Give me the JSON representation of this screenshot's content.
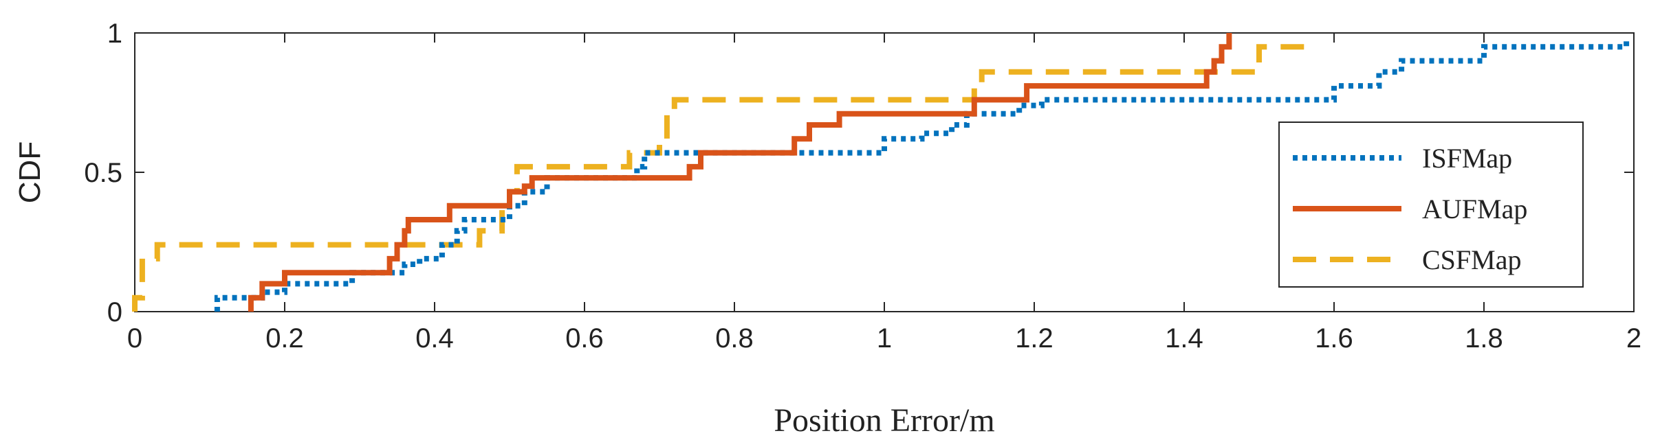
{
  "chart_data": {
    "type": "line",
    "title": "",
    "xlabel": "Position Error/m",
    "ylabel": "CDF",
    "xlim": [
      0,
      2
    ],
    "ylim": [
      0,
      1
    ],
    "x_ticks": [
      "0",
      "0.2",
      "0.4",
      "0.6",
      "0.8",
      "1",
      "1.2",
      "1.4",
      "1.6",
      "1.8",
      "2"
    ],
    "y_ticks": [
      "0",
      "0.5",
      "1"
    ],
    "grid": false,
    "legend_position": "right",
    "series": [
      {
        "name": "ISFMap",
        "color": "#0072BD",
        "style": "dotted",
        "points": [
          [
            0.11,
            0
          ],
          [
            0.11,
            0.05
          ],
          [
            0.17,
            0.05
          ],
          [
            0.17,
            0.07
          ],
          [
            0.2,
            0.07
          ],
          [
            0.2,
            0.1
          ],
          [
            0.29,
            0.1
          ],
          [
            0.29,
            0.14
          ],
          [
            0.36,
            0.14
          ],
          [
            0.36,
            0.17
          ],
          [
            0.38,
            0.17
          ],
          [
            0.38,
            0.19
          ],
          [
            0.41,
            0.19
          ],
          [
            0.41,
            0.24
          ],
          [
            0.43,
            0.24
          ],
          [
            0.43,
            0.29
          ],
          [
            0.44,
            0.29
          ],
          [
            0.44,
            0.33
          ],
          [
            0.5,
            0.33
          ],
          [
            0.5,
            0.38
          ],
          [
            0.52,
            0.38
          ],
          [
            0.52,
            0.43
          ],
          [
            0.55,
            0.43
          ],
          [
            0.55,
            0.48
          ],
          [
            0.67,
            0.48
          ],
          [
            0.67,
            0.52
          ],
          [
            0.68,
            0.52
          ],
          [
            0.68,
            0.57
          ],
          [
            0.88,
            0.57
          ],
          [
            0.88,
            0.57
          ],
          [
            1.0,
            0.57
          ],
          [
            1.0,
            0.62
          ],
          [
            1.05,
            0.62
          ],
          [
            1.05,
            0.64
          ],
          [
            1.09,
            0.64
          ],
          [
            1.09,
            0.67
          ],
          [
            1.11,
            0.67
          ],
          [
            1.11,
            0.71
          ],
          [
            1.18,
            0.71
          ],
          [
            1.18,
            0.74
          ],
          [
            1.21,
            0.74
          ],
          [
            1.21,
            0.76
          ],
          [
            1.6,
            0.76
          ],
          [
            1.6,
            0.81
          ],
          [
            1.66,
            0.81
          ],
          [
            1.66,
            0.86
          ],
          [
            1.69,
            0.86
          ],
          [
            1.69,
            0.9
          ],
          [
            1.8,
            0.9
          ],
          [
            1.8,
            0.95
          ],
          [
            1.99,
            0.95
          ],
          [
            1.99,
            0.97
          ]
        ]
      },
      {
        "name": "AUFMap",
        "color": "#D95319",
        "style": "solid",
        "points": [
          [
            0.155,
            0
          ],
          [
            0.155,
            0.05
          ],
          [
            0.17,
            0.05
          ],
          [
            0.17,
            0.1
          ],
          [
            0.2,
            0.1
          ],
          [
            0.2,
            0.14
          ],
          [
            0.34,
            0.14
          ],
          [
            0.34,
            0.19
          ],
          [
            0.35,
            0.19
          ],
          [
            0.35,
            0.24
          ],
          [
            0.36,
            0.24
          ],
          [
            0.36,
            0.29
          ],
          [
            0.365,
            0.29
          ],
          [
            0.365,
            0.33
          ],
          [
            0.42,
            0.33
          ],
          [
            0.42,
            0.38
          ],
          [
            0.5,
            0.38
          ],
          [
            0.5,
            0.43
          ],
          [
            0.52,
            0.43
          ],
          [
            0.52,
            0.45
          ],
          [
            0.53,
            0.45
          ],
          [
            0.53,
            0.48
          ],
          [
            0.74,
            0.48
          ],
          [
            0.74,
            0.52
          ],
          [
            0.755,
            0.52
          ],
          [
            0.755,
            0.57
          ],
          [
            0.88,
            0.57
          ],
          [
            0.88,
            0.62
          ],
          [
            0.9,
            0.62
          ],
          [
            0.9,
            0.67
          ],
          [
            0.94,
            0.67
          ],
          [
            0.94,
            0.71
          ],
          [
            1.12,
            0.71
          ],
          [
            1.12,
            0.76
          ],
          [
            1.19,
            0.76
          ],
          [
            1.19,
            0.81
          ],
          [
            1.43,
            0.81
          ],
          [
            1.43,
            0.86
          ],
          [
            1.44,
            0.86
          ],
          [
            1.44,
            0.9
          ],
          [
            1.45,
            0.9
          ],
          [
            1.45,
            0.95
          ],
          [
            1.46,
            0.95
          ],
          [
            1.46,
            1.0
          ]
        ]
      },
      {
        "name": "CSFMap",
        "color": "#EDB120",
        "style": "dashed",
        "points": [
          [
            0.0,
            0
          ],
          [
            0.0,
            0.05
          ],
          [
            0.01,
            0.05
          ],
          [
            0.01,
            0.19
          ],
          [
            0.03,
            0.19
          ],
          [
            0.03,
            0.24
          ],
          [
            0.46,
            0.24
          ],
          [
            0.46,
            0.29
          ],
          [
            0.49,
            0.29
          ],
          [
            0.49,
            0.38
          ],
          [
            0.5,
            0.38
          ],
          [
            0.5,
            0.43
          ],
          [
            0.51,
            0.43
          ],
          [
            0.51,
            0.52
          ],
          [
            0.66,
            0.52
          ],
          [
            0.66,
            0.57
          ],
          [
            0.7,
            0.57
          ],
          [
            0.7,
            0.62
          ],
          [
            0.71,
            0.62
          ],
          [
            0.71,
            0.71
          ],
          [
            0.72,
            0.71
          ],
          [
            0.72,
            0.76
          ],
          [
            1.12,
            0.76
          ],
          [
            1.12,
            0.81
          ],
          [
            1.13,
            0.81
          ],
          [
            1.13,
            0.86
          ],
          [
            1.5,
            0.86
          ],
          [
            1.5,
            0.95
          ],
          [
            1.56,
            0.95
          ]
        ]
      }
    ]
  }
}
